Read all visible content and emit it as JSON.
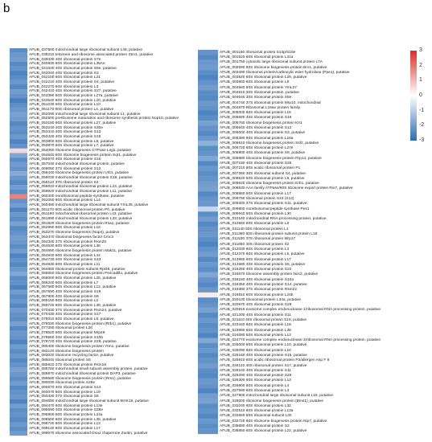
{
  "panel_label": "b",
  "colors": {
    "low": "#2b6bb5",
    "mid": "#ffffff",
    "high": "#d73027"
  },
  "colorbar": {
    "ticks": [
      "3",
      "2",
      "1",
      "0",
      "-1",
      "-2",
      "-3"
    ],
    "range": [
      -3,
      3
    ]
  },
  "chart_data": {
    "type": "heatmap",
    "panels": [
      {
        "rows": [
          {
            "label": "AFUB_037800 mitochondrial large ribosomal subunit L49, putative",
            "value": -2.3
          },
          {
            "label": "AFUB_038210 telomere and ribosome associated protein Stm1, putative",
            "value": -2.1
          },
          {
            "label": "AFUB_039430 40S ribosomal protein S7e",
            "value": -2.0
          },
          {
            "label": "AFUB_040930 60S ribosomal protein L35Ae",
            "value": -2.4
          },
          {
            "label": "AFUB_041020 40S ribosomal protein S8e, putative",
            "value": -2.2
          },
          {
            "label": "AFUB_042040 40S ribosomal protein S3",
            "value": -2.5
          },
          {
            "label": "AFUB_042100 60S ribosomal protein L21",
            "value": -2.3
          },
          {
            "label": "AFUB_042210 40S ribosomal protein S4, putative",
            "value": -2.1
          },
          {
            "label": "AFUB_042270 60S ribosomal protein L3",
            "value": -2.4
          },
          {
            "label": "AFUB_042410 40S ribosomal protein S27, putative",
            "value": -2.0
          },
          {
            "label": "AFUB_043390 60S ribosomal protein L27a, putative",
            "value": -2.2
          },
          {
            "label": "AFUB_043540 60S ribosomal protein L20, putative",
            "value": -2.6
          },
          {
            "label": "AFUB_051030 60S ribosomal protein L10",
            "value": -2.3
          },
          {
            "label": "AFUB_051170 60S ribosomal protein L4, putative",
            "value": -2.1
          },
          {
            "label": "AFUB_052090 mitochondrial large ribosomal subunit L1, putative",
            "value": -1.9
          },
          {
            "label": "AFUB_052500 preribosome maturation and ribosome synthesis protein Nop10, putative",
            "value": -2.0
          },
          {
            "label": "AFUB_053150 60S ribosomal protein L27, putative",
            "value": -2.4
          },
          {
            "label": "AFUB_053240 40S ribosomal protein S30e",
            "value": -2.2
          },
          {
            "label": "AFUB_053310 40S ribosomal protein S13",
            "value": -2.3
          },
          {
            "label": "AFUB_053420 40S ribosomal protein S15",
            "value": -2.1
          },
          {
            "label": "AFUB_053800 60S ribosomal protein L8, putative",
            "value": -2.5
          },
          {
            "label": "AFUB_053870 60S ribosomal protein L7, putative",
            "value": -2.2
          },
          {
            "label": "AFUB_054060 ribosome biogenesis GTPase Lsg1, putative",
            "value": 0.6
          },
          {
            "label": "AFUB_054640 60S ribosome biogenesis protein Sqt1, putative",
            "value": -1.8
          },
          {
            "label": "AFUB_055970 40S ribosomal protein S16",
            "value": -2.3
          },
          {
            "label": "AFUB_057040 mitochondrial ribosomal protein, putative",
            "value": -2.0
          },
          {
            "label": "AFUB_058050 37S ribosomal protein S12",
            "value": -2.2
          },
          {
            "label": "AFUB_058440 ribosome biogenesis protein Urb1, putative",
            "value": -1.7
          },
          {
            "label": "AFUB_059030 mitochondrial ribosomal protein S19, putative",
            "value": -2.1
          },
          {
            "label": "AFUB_059110 37S ribosomal protein S3",
            "value": -2.4
          },
          {
            "label": "AFUB_059910 mitochondrial ribosomal protein L23, putative",
            "value": -2.0
          },
          {
            "label": "AFUB_059920 mitochondrial ribosomal protein L11, putative",
            "value": -2.3
          },
          {
            "label": "AFUB_060400 nonribosomal peptide synthase, putative",
            "value": 1.8
          },
          {
            "label": "AFUB_061050 60S ribosomal protein L14",
            "value": -2.2
          },
          {
            "label": "AFUB_060480 mitochondrial large ribosomal subunit YmL35, putative",
            "value": -2.0
          },
          {
            "label": "AFUB_061170 60S acidic ribosomal protein P0, putative",
            "value": -2.5
          },
          {
            "label": "AFUB_061190 mitochondrial ribosomal protein L43, putative",
            "value": -2.1
          },
          {
            "label": "AFUB_061890 mitochondrial ribosomal protein L33, putative",
            "value": -2.3
          },
          {
            "label": "AFUB_061920 ribosome biogenesis protein Rsa1, putative",
            "value": -1.9
          },
          {
            "label": "AFUB_062960 60S ribosomal protein L18",
            "value": -2.4
          },
          {
            "label": "AFUB_063270 ribosome biogenesis (Nop4), putative",
            "value": -2.2
          },
          {
            "label": "AFUB_063470 ribosomal biogenesis factor Cmc3",
            "value": -2.0
          },
          {
            "label": "AFUB_064340 37S ribosomal protein Rsm25",
            "value": -2.1
          },
          {
            "label": "AFUB_064530 60S ribosomal protein L36",
            "value": -2.3
          },
          {
            "label": "AFUB_064690 ribosome biogenesis protein Mak11, putative",
            "value": -2.0
          },
          {
            "label": "AFUB_064940 60S ribosomal protein L44",
            "value": -2.5
          },
          {
            "label": "AFUB_064730 40S ribosomal protein S13",
            "value": -2.2
          },
          {
            "label": "AFUB_064830 60S ribosomal protein L11",
            "value": -2.4
          },
          {
            "label": "AFUB_064850 ribosomal protein subunit Rpl36, putative",
            "value": -2.1
          },
          {
            "label": "AFUB_065050 ribosome biogenesis protein Pescadillo, putative",
            "value": -1.8
          },
          {
            "label": "AFUB_066000 60S ribosomal protein L25, putative",
            "value": -2.3
          },
          {
            "label": "AFUB_066240 60S ribosomal protein L7",
            "value": -2.2
          },
          {
            "label": "AFUB_067580 60S ribosomal protein L12, putative",
            "value": -2.5
          },
          {
            "label": "AFUB_067690 40S ribosomal protein S18",
            "value": -2.0
          },
          {
            "label": "AFUB_067800 40S ribosomal protein S6",
            "value": -2.3
          },
          {
            "label": "AFUB_069150 60S ribosomal protein L2",
            "value": -2.1
          },
          {
            "label": "AFUB_069720 60S ribosomal protein L36, putative",
            "value": -2.4
          },
          {
            "label": "AFUB_070330 37S ribosomal protein Rsm24, putative",
            "value": -2.0
          },
          {
            "label": "AFUB_070430 40S ribosomal protein S17",
            "value": -2.2
          },
          {
            "label": "AFUB_075010 60S ribosomal protein L6, putative",
            "value": -2.3
          },
          {
            "label": "AFUB_075020 ribosome biogenesis protein (Rrb1), putative",
            "value": -1.9
          },
          {
            "label": "AFUB_077280 ribosomal protein L26",
            "value": -2.4
          },
          {
            "label": "AFUB_078620 60S ribosomal protein Mrp49",
            "value": -2.1
          },
          {
            "label": "AFUB_078660 40S ribosomal protein S10b",
            "value": -2.2
          },
          {
            "label": "AFUB_078720 40S ribosomal protein S28, putative",
            "value": -2.5
          },
          {
            "label": "AFUB_080400 ribosome biogenesis protein Ytm1, putative",
            "value": -2.0
          },
          {
            "label": "AFUB_082120 ribosome biogenesis protein",
            "value": -2.3
          },
          {
            "label": "AFUB_083020 ribosome recycling factor, putative",
            "value": -2.1
          },
          {
            "label": "AFUB_085040 ribosomal protein S5",
            "value": -2.4
          },
          {
            "label": "AFUB_085810 37S ribosomal protein Rsm18",
            "value": -2.2
          },
          {
            "label": "AFUB_086760 mitochondrial small subunit assembly protein, putative",
            "value": -1.9
          },
          {
            "label": "AFUB_089870 mitochondrial ribosomal protein DAP3, putative",
            "value": -2.1
          },
          {
            "label": "AFUB_089680 ribosome biogenesis protein (Rrs1), putative",
            "value": -2.3
          },
          {
            "label": "AFUB_090030 ribosomal protein S28e",
            "value": -2.0
          },
          {
            "label": "AFUB_090670 40S ribosomal protein S13",
            "value": -2.4
          },
          {
            "label": "AFUB_093070 60S ribosomal protein L19",
            "value": -2.2
          },
          {
            "label": "AFUB_093430 37S ribosomal protein S5",
            "value": -2.1
          },
          {
            "label": "AFUB_094690 mitochondrial large ribosomal subunit MAK16, putative",
            "value": -2.5
          },
          {
            "label": "AFUB_094470 60S ribosomal protein L13e",
            "value": -2.0
          },
          {
            "label": "AFUB_095690 40S ribosomal protein S28e",
            "value": -2.3
          },
          {
            "label": "AFUB_095900 60S ribosomal protein L24a",
            "value": -2.2
          },
          {
            "label": "AFUB_098550 60S ribosomal protein L35, putative",
            "value": -2.4
          },
          {
            "label": "AFUB_098720 60S ribosomal protein L13",
            "value": -2.1
          },
          {
            "label": "AFUB_099140 60S ribosomal protein L17",
            "value": -2.3
          },
          {
            "label": "AFUB_099070 ribosome associated DnaJ chaperone Zuotin, putative",
            "value": -2.0
          }
        ]
      },
      {
        "rows": [
          {
            "label": "AFUB_001190 ribosomal protein S13p/S18e",
            "value": -2.2
          },
          {
            "label": "AFUB_001520 60S ribosomal protein L31a",
            "value": -2.4
          },
          {
            "label": "AFUB_001750 cytosolic large ribosomal subunit protein L7A",
            "value": -2.1
          },
          {
            "label": "AFUB_002590 60S ribosome biogenesis protein Brx1, putative",
            "value": -2.0
          },
          {
            "label": "AFUB_003490 ribosomal protein/carboxylic ester hydrolase (Ppe1), putative",
            "value": -2.3
          },
          {
            "label": "AFUB_003520 60S ribosomal protein L29, putative",
            "value": -2.5
          },
          {
            "label": "AFUB_003800 60S ribosomal protein L9",
            "value": -2.2
          },
          {
            "label": "AFUB_004560 50S ribosomal protein YmL27",
            "value": -2.0
          },
          {
            "label": "AFUB_004610 30S ribosomal protein, putative",
            "value": -2.3
          },
          {
            "label": "AFUB_004640 40S ribosomal protein S8e",
            "value": -2.4
          },
          {
            "label": "AFUB_004740 37S ribosomal protein Mrp10, mitochondrial",
            "value": -2.1
          },
          {
            "label": "AFUB_004870 Ribosomal L18ae protein family",
            "value": -2.2
          },
          {
            "label": "AFUB_005000 60S ribosomal protein L15",
            "value": -2.5
          },
          {
            "label": "AFUB_005690 40S ribosomal protein S19",
            "value": -2.3
          },
          {
            "label": "AFUB_005760 ribosome biogenesis protein Kri1",
            "value": -1.9
          },
          {
            "label": "AFUB_005840 40S ribosomal protein S12",
            "value": -2.2
          },
          {
            "label": "AFUB_006000 40S ribosomal protein S3, putative",
            "value": -2.4
          },
          {
            "label": "AFUB_006380 60S ribosomal protein L16a",
            "value": -2.1
          },
          {
            "label": "AFUB_006610 ribosome biogenesis protein Ssf2, putative",
            "value": -1.6
          },
          {
            "label": "AFUB_006720 60S ribosomal protein L27e",
            "value": -2.3
          },
          {
            "label": "AFUB_006900 40S ribosomal protein S9, putative",
            "value": -2.2
          },
          {
            "label": "AFUB_006980 ribosome biogenesis protein Rrp14, putative",
            "value": -1.8
          },
          {
            "label": "AFUB_007150 40S ribosomal protein S25",
            "value": -2.4
          },
          {
            "label": "AFUB_007210 60S acidic ribosomal protein P1",
            "value": -2.1
          },
          {
            "label": "AFUB_007360 30S ribosomal subunit S4, putative",
            "value": -2.3
          },
          {
            "label": "AFUB_008520 60S ribosomal protein L9, putative",
            "value": -2.2
          },
          {
            "label": "AFUB_008620 ribosome biogenesis protein Erb1, putative",
            "value": -2.0
          },
          {
            "label": "AFUB_008630 AAA family ATPase/60S ribosome export protein Rix7, putative",
            "value": -1.9
          },
          {
            "label": "AFUB_008860 50S ribosomal protein L17",
            "value": -2.4
          },
          {
            "label": "AFUB_009780 ribosomal protein S23 (S12)",
            "value": -2.2
          },
          {
            "label": "AFUB_009300 37S ribosomal protein S11, putative",
            "value": -2.1
          },
          {
            "label": "AFUB_009800 nonribosomal peptide synthase Pes1",
            "value": -0.8
          },
          {
            "label": "AFUB_009940 60S ribosomal protein L30",
            "value": -2.3
          },
          {
            "label": "AFUB_010160 mitochondrial RNA processing protein, putative",
            "value": -2.0
          },
          {
            "label": "AFUB_010560 60S ribosomal protein L8",
            "value": -2.4
          },
          {
            "label": "AFUB_011140 60S ribosomal protein L1",
            "value": -2.2
          },
          {
            "label": "AFUB_011390 50S ribosomal protein subunit protein L15",
            "value": -2.1
          },
          {
            "label": "AFUB_011530 37S ribosomal protein Mrp17",
            "value": -2.3
          },
          {
            "label": "AFUB_011650 40S ribosomal protein S2",
            "value": -2.5
          },
          {
            "label": "AFUB_012030 60S ribosomal protein L3",
            "value": -2.2
          },
          {
            "label": "AFUB_012370 60S ribosomal protein L5, putative",
            "value": -2.0
          },
          {
            "label": "AFUB_013950 60S ribosomal protein L17",
            "value": -2.4
          },
          {
            "label": "AFUB_014580 40S ribosomal protein S5, putative",
            "value": -2.1
          },
          {
            "label": "AFUB_015260 40S ribosomal protein S22",
            "value": -2.3
          },
          {
            "label": "AFUB_015670 ribosome assembly protein Noc2, putative",
            "value": -1.8
          },
          {
            "label": "AFUB_016160 40S ribosomal protein S10a",
            "value": -2.2
          },
          {
            "label": "AFUB_018350 40S ribosomal protein S14, putative",
            "value": -2.4
          },
          {
            "label": "AFUB_019380 37S ribosomal protein Rsm22",
            "value": -2.1
          },
          {
            "label": "AFUB_019810 60S ribosomal protein L24b",
            "value": 0.3
          },
          {
            "label": "AFUB_020100 ribosomal protein L34a, putative",
            "value": -2.3
          },
          {
            "label": "AFUB_020670 40S ribosomal protein S28",
            "value": -2.2
          },
          {
            "label": "AFUB_020810 exosome complex endonuclease 1/ribosomal RNA processing protein, putative",
            "value": -1.9
          },
          {
            "label": "AFUB_021200 40S ribosomal protein S11",
            "value": -2.4
          },
          {
            "label": "AFUB_021110 40S ribosomal protein S16, putative",
            "value": -2.1
          },
          {
            "label": "AFUB_023440 60S ribosomal protein L18",
            "value": -2.3
          },
          {
            "label": "AFUB_023990 60S ribosomal protein L38",
            "value": -2.2
          },
          {
            "label": "AFUB_024080 50S ribosomal protein L13",
            "value": -2.5
          },
          {
            "label": "AFUB_024770 exosome complex endonuclease 2/ribosomal RNA processing protein, putative",
            "value": -1.8
          },
          {
            "label": "AFUB_025000 60S ribosomal protein L10, putative",
            "value": -2.3
          },
          {
            "label": "AFUB_025090 60S ribosomal protein L10",
            "value": -2.1
          },
          {
            "label": "AFUB_025160 40S ribosomal protein S15, putative",
            "value": -2.4
          },
          {
            "label": "AFUB_025910 60S acidic ribosomal protein P2/allergen Asp F 8",
            "value": -2.2
          },
          {
            "label": "AFUB_026110 40S ribosomal protein S17, putative",
            "value": -2.0
          },
          {
            "label": "AFUB_026240 40S ribosomal protein S11",
            "value": -2.3
          },
          {
            "label": "AFUB_026290 40S ribosomal protein S29",
            "value": -2.4
          },
          {
            "label": "AFUB_026300 60S ribosomal protein L13",
            "value": -2.1
          },
          {
            "label": "AFUB_026900 60S ribosomal protein L4",
            "value": -2.2
          },
          {
            "label": "AFUB_027590 60S ribosomal protein L3",
            "value": -2.5
          },
          {
            "label": "AFUB_027900 mitochondrial large ribosomal subunit L16, putative",
            "value": -2.0
          },
          {
            "label": "AFUB_028000 ribosome biogenesis protein (Bms1), putative",
            "value": -1.9
          },
          {
            "label": "AFUB_032040 60S ribosomal protein L32",
            "value": -2.3
          },
          {
            "label": "AFUB_032510 60S ribosomal protein L13a",
            "value": -2.2
          },
          {
            "label": "AFUB_032650 60S ribosomal subunit L30",
            "value": -2.4
          },
          {
            "label": "AFUB_032720 60S ribosome biogenesis protein Nip7, putative",
            "value": -2.1
          },
          {
            "label": "AFUB_035880 40S ribosomal protein S2",
            "value": -2.3
          },
          {
            "label": "AFUB_036860 60S ribosomal protein L22, putative",
            "value": -2.2
          }
        ]
      }
    ]
  }
}
